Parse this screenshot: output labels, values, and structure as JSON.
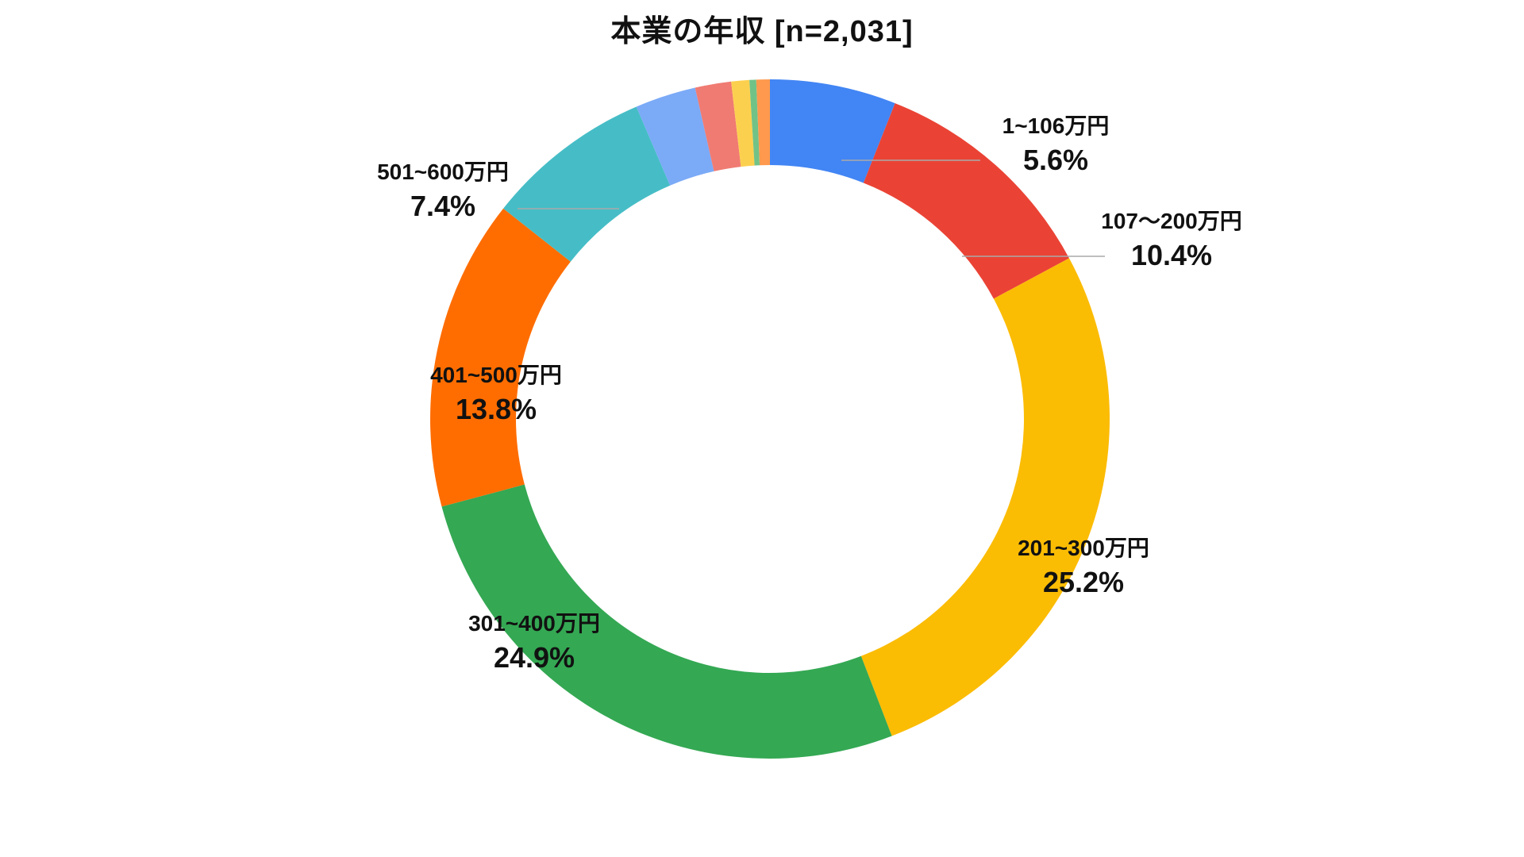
{
  "chart_data": {
    "type": "pie",
    "variant": "donut",
    "title": "本業の年収 [n=2,031]",
    "legend": "none",
    "start_angle_deg": 0,
    "slices": [
      {
        "label": "1~106万円",
        "value": 5.6,
        "value_label": "5.6%",
        "color": "#4285F4",
        "labeled": true
      },
      {
        "label": "107～200万円",
        "value": 10.4,
        "value_label": "10.4%",
        "color": "#EA4335",
        "labeled": true
      },
      {
        "label": "201~300万円",
        "value": 25.2,
        "value_label": "25.2%",
        "color": "#FBBC04",
        "labeled": true
      },
      {
        "label": "301~400万円",
        "value": 24.9,
        "value_label": "24.9%",
        "color": "#34A853",
        "labeled": true
      },
      {
        "label": "401~500万円",
        "value": 13.8,
        "value_label": "13.8%",
        "color": "#FF6D01",
        "labeled": true
      },
      {
        "label": "501~600万円",
        "value": 7.4,
        "value_label": "7.4%",
        "color": "#46BDC6",
        "labeled": true
      },
      {
        "label": "",
        "value": 2.7,
        "value_label": "",
        "color": "#7BAAF7",
        "labeled": false
      },
      {
        "label": "",
        "value": 1.6,
        "value_label": "",
        "color": "#F07B72",
        "labeled": false
      },
      {
        "label": "",
        "value": 0.8,
        "value_label": "",
        "color": "#FCD04F",
        "labeled": false
      },
      {
        "label": "",
        "value": 0.3,
        "value_label": "",
        "color": "#71C287",
        "labeled": false
      },
      {
        "label": "",
        "value": 0.6,
        "value_label": "",
        "color": "#FF994D",
        "labeled": false
      }
    ]
  }
}
